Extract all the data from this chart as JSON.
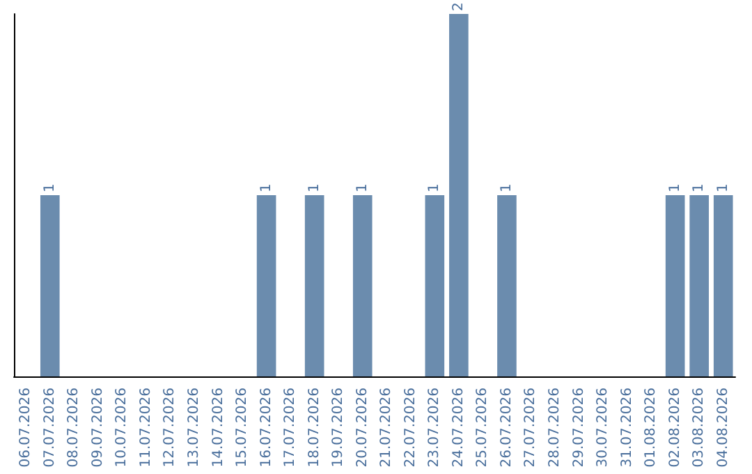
{
  "chart_data": {
    "type": "bar",
    "categories": [
      "06.07.2026",
      "07.07.2026",
      "08.07.2026",
      "09.07.2026",
      "10.07.2026",
      "11.07.2026",
      "12.07.2026",
      "13.07.2026",
      "14.07.2026",
      "15.07.2026",
      "16.07.2026",
      "17.07.2026",
      "18.07.2026",
      "19.07.2026",
      "20.07.2026",
      "21.07.2026",
      "22.07.2026",
      "23.07.2026",
      "24.07.2026",
      "25.07.2026",
      "26.07.2026",
      "27.07.2026",
      "28.07.2026",
      "29.07.2026",
      "30.07.2026",
      "31.07.2026",
      "01.08.2026",
      "02.08.2026",
      "03.08.2026",
      "04.08.2026"
    ],
    "values": [
      0,
      1,
      0,
      0,
      0,
      0,
      0,
      0,
      0,
      0,
      1,
      0,
      1,
      0,
      1,
      0,
      0,
      1,
      2,
      0,
      1,
      0,
      0,
      0,
      0,
      0,
      0,
      1,
      1,
      1
    ],
    "value_labels": [
      null,
      "1",
      null,
      null,
      null,
      null,
      null,
      null,
      null,
      null,
      "1",
      null,
      "1",
      null,
      "1",
      null,
      null,
      "1",
      "2",
      null,
      "1",
      null,
      null,
      null,
      null,
      null,
      null,
      "1",
      "1",
      "1"
    ],
    "color": "#6b8cae",
    "tick_labels": "x"
  }
}
